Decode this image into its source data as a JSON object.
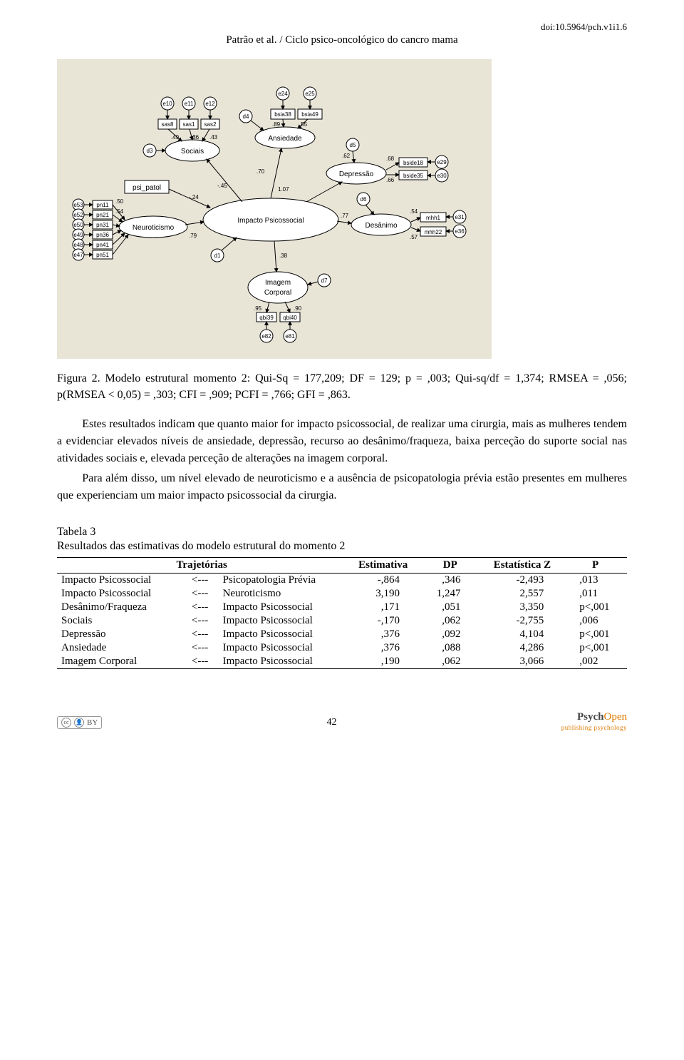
{
  "doi": "doi:10.5964/pch.v1i1.6",
  "running_head": "Patrão et al. / Ciclo psico-oncológico do cancro mama",
  "diagram": {
    "type": "sem-path-diagram",
    "background_color": "#e8e5d7",
    "node_fill": "#ffffff",
    "node_stroke": "#000000",
    "central_latent": "Impacto Psicossocial",
    "latents": [
      {
        "id": "sociais",
        "label": "Sociais",
        "shape": "ellipse"
      },
      {
        "id": "neuro",
        "label": "Neuroticismo",
        "shape": "ellipse"
      },
      {
        "id": "anx",
        "label": "Ansiedade",
        "shape": "ellipse"
      },
      {
        "id": "dep",
        "label": "Depressão",
        "shape": "ellipse"
      },
      {
        "id": "des",
        "label": "Desânimo",
        "shape": "ellipse"
      },
      {
        "id": "imc",
        "label": "Imagem Corporal",
        "shape": "ellipse"
      },
      {
        "id": "impacto",
        "label": "Impacto Psicossocial",
        "shape": "ellipse"
      }
    ],
    "observed": [
      {
        "id": "psi",
        "label": "psi_patol"
      },
      {
        "id": "sas8",
        "label": "sas8"
      },
      {
        "id": "sas1",
        "label": "sas1"
      },
      {
        "id": "sas2",
        "label": "sas2"
      },
      {
        "id": "pn11",
        "label": "pn11"
      },
      {
        "id": "pn21",
        "label": "pn21"
      },
      {
        "id": "pn31",
        "label": "pn31"
      },
      {
        "id": "pn36",
        "label": "pn36"
      },
      {
        "id": "pn41",
        "label": "pn41"
      },
      {
        "id": "pn51",
        "label": "pn51"
      },
      {
        "id": "bsia38",
        "label": "bsia38"
      },
      {
        "id": "bsia49",
        "label": "bsia49"
      },
      {
        "id": "bside18",
        "label": "bside18"
      },
      {
        "id": "bside35",
        "label": "bside35"
      },
      {
        "id": "mhh1",
        "label": "mhh1"
      },
      {
        "id": "mhh22",
        "label": "mhh22"
      },
      {
        "id": "qbi39",
        "label": "qbi39"
      },
      {
        "id": "qbi40",
        "label": "qbi40"
      }
    ],
    "errors": [
      "e10",
      "e11",
      "e12",
      "e24",
      "e25",
      "e29",
      "e30",
      "e31",
      "e36",
      "e47",
      "e48",
      "e49",
      "e50",
      "e52",
      "e53",
      "e81",
      "e82",
      "d1",
      "d3",
      "d4",
      "d5",
      "d6",
      "d7"
    ],
    "path_coeffs": [
      {
        "from": "impacto",
        "to": "sociais",
        "value": -0.45
      },
      {
        "from": "impacto",
        "to": "anx",
        "value": 0.7
      },
      {
        "from": "impacto",
        "to": "dep",
        "value": 1.07
      },
      {
        "from": "impacto",
        "to": "des",
        "value": 0.77
      },
      {
        "from": "impacto",
        "to": "imc",
        "value": 0.38
      },
      {
        "from": "neuro",
        "to": "impacto",
        "value": 0.79
      },
      {
        "from": "psi",
        "to": "impacto",
        "value": -0.24
      }
    ],
    "loadings": [
      {
        "on": "sociais",
        "vals": [
          0.49,
          0.36,
          0.43
        ]
      },
      {
        "on": "neuro",
        "vals": [
          0.5,
          0.54,
          0.16,
          0.15,
          0.29,
          0.1
        ]
      },
      {
        "on": "anx",
        "vals": [
          0.89,
          0.55
        ]
      },
      {
        "on": "dep",
        "vals": [
          0.62,
          0.68,
          0.66
        ]
      },
      {
        "on": "des",
        "vals": [
          0.54,
          0.57
        ]
      },
      {
        "on": "imc",
        "vals": [
          0.95,
          0.9
        ]
      }
    ]
  },
  "caption_prefix": "Figura 2.",
  "caption_text": " Modelo estrutural momento 2: Qui-Sq = 177,209; DF = 129; p = ,003; Qui-sq/df = 1,374; RMSEA = ,056; p(RMSEA < 0,05) = ,303; CFI = ,909; PCFI = ,766; GFI = ,863.",
  "para1": "Estes resultados indicam que quanto maior for impacto psicossocial, de realizar uma cirurgia, mais as mulheres tendem a evidenciar elevados níveis de ansiedade, depressão, recurso ao desânimo/fraqueza, baixa perceção do suporte social nas atividades sociais e, elevada perceção de alterações na imagem corporal.",
  "para2": "Para além disso, um nível elevado de neuroticismo e a ausência de psicopatologia prévia estão presentes em mulheres que experienciam um maior impacto psicossocial da cirurgia.",
  "table": {
    "label": "Tabela 3",
    "title": "Resultados das estimativas do modelo estrutural do momento 2",
    "columns": [
      "Trajetórias",
      "",
      "",
      "Estimativa",
      "DP",
      "Estatística Z",
      "P"
    ],
    "header": {
      "traj": "Trajetórias",
      "est": "Estimativa",
      "dp": "DP",
      "z": "Estatística Z",
      "p": "P"
    },
    "rows": [
      {
        "to": "Impacto Psicossocial",
        "arrow": "<---",
        "from": "Psicopatologia Prévia",
        "est": "-,864",
        "dp": ",346",
        "z": "-2,493",
        "p": ",013"
      },
      {
        "to": "Impacto Psicossocial",
        "arrow": "<---",
        "from": "Neuroticismo",
        "est": "3,190",
        "dp": "1,247",
        "z": "2,557",
        "p": ",011"
      },
      {
        "to": "Desânimo/Fraqueza",
        "arrow": "<---",
        "from": "Impacto Psicossocial",
        "est": ",171",
        "dp": ",051",
        "z": "3,350",
        "p": "p<,001"
      },
      {
        "to": "Sociais",
        "arrow": "<---",
        "from": "Impacto Psicossocial",
        "est": "-,170",
        "dp": ",062",
        "z": "-2,755",
        "p": ",006"
      },
      {
        "to": "Depressão",
        "arrow": "<---",
        "from": "Impacto Psicossocial",
        "est": ",376",
        "dp": ",092",
        "z": "4,104",
        "p": "p<,001"
      },
      {
        "to": "Ansiedade",
        "arrow": "<---",
        "from": "Impacto Psicossocial",
        "est": ",376",
        "dp": ",088",
        "z": "4,286",
        "p": "p<,001"
      },
      {
        "to": "Imagem Corporal",
        "arrow": "<---",
        "from": "Impacto Psicossocial",
        "est": ",190",
        "dp": ",062",
        "z": "3,066",
        "p": ",002"
      }
    ]
  },
  "footer": {
    "cc_label": "BY",
    "page_number": "42",
    "brand_main_bold": "Psych",
    "brand_main_rest": "Open",
    "brand_sub": "publishing psychology"
  }
}
